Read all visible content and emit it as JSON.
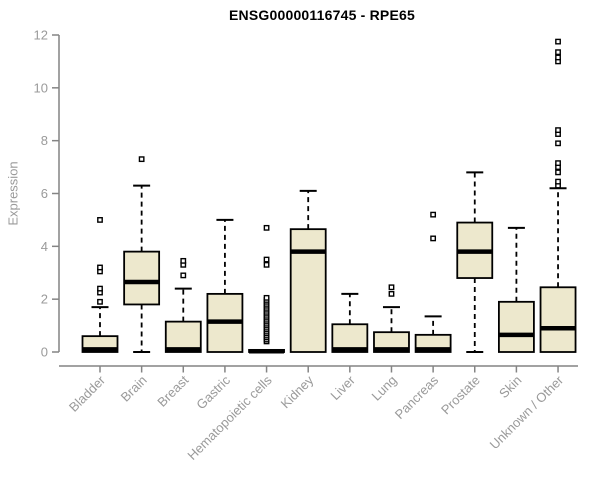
{
  "page": {
    "background": "#ffffff"
  },
  "chart_data": {
    "type": "boxplot",
    "title": "ENSG00000116745 - RPE65",
    "ylabel": "Expression",
    "xlabel": "",
    "ylim": [
      0,
      12
    ],
    "yticks": [
      0,
      2,
      4,
      6,
      8,
      10,
      12
    ],
    "grid": false,
    "legend": null,
    "categories": [
      "Bladder",
      "Brain",
      "Breast",
      "Gastric",
      "Hematopoietic cells",
      "Kidney",
      "Liver",
      "Lung",
      "Pancreas",
      "Prostate",
      "Skin",
      "Unknown / Other"
    ],
    "boxes": [
      {
        "category": "Bladder",
        "min": 0,
        "q1": 0,
        "median": 0.1,
        "q3": 0.6,
        "max": 1.7,
        "outliers": [
          1.9,
          2.25,
          2.4,
          3.05,
          3.2,
          5.0
        ]
      },
      {
        "category": "Brain",
        "min": 0,
        "q1": 1.8,
        "median": 2.65,
        "q3": 3.8,
        "max": 6.3,
        "outliers": [
          7.3
        ]
      },
      {
        "category": "Breast",
        "min": 0,
        "q1": 0,
        "median": 0.1,
        "q3": 1.15,
        "max": 2.4,
        "outliers": [
          2.9,
          3.3,
          3.45
        ]
      },
      {
        "category": "Gastric",
        "min": 0,
        "q1": 0,
        "median": 1.15,
        "q3": 2.2,
        "max": 5.0,
        "outliers": []
      },
      {
        "category": "Hematopoietic cells",
        "min": 0,
        "q1": 0,
        "median": 0.03,
        "q3": 0.08,
        "max": 0.08,
        "outliers": [
          0.4,
          0.47,
          0.55,
          0.62,
          0.7,
          0.77,
          0.85,
          0.92,
          1.0,
          1.07,
          1.15,
          1.22,
          1.3,
          1.37,
          1.45,
          1.52,
          1.6,
          1.67,
          1.75,
          1.82,
          1.9,
          1.97,
          2.05,
          3.3,
          3.5,
          4.7
        ]
      },
      {
        "category": "Kidney",
        "min": 0,
        "q1": 0,
        "median": 3.8,
        "q3": 4.65,
        "max": 6.1,
        "outliers": []
      },
      {
        "category": "Liver",
        "min": 0,
        "q1": 0,
        "median": 0.1,
        "q3": 1.05,
        "max": 2.2,
        "outliers": []
      },
      {
        "category": "Lung",
        "min": 0,
        "q1": 0,
        "median": 0.1,
        "q3": 0.75,
        "max": 1.7,
        "outliers": [
          2.2,
          2.45
        ]
      },
      {
        "category": "Pancreas",
        "min": 0,
        "q1": 0,
        "median": 0.1,
        "q3": 0.65,
        "max": 1.35,
        "outliers": [
          4.3,
          5.2
        ]
      },
      {
        "category": "Prostate",
        "min": 0,
        "q1": 2.8,
        "median": 3.8,
        "q3": 4.9,
        "max": 6.8,
        "outliers": []
      },
      {
        "category": "Skin",
        "min": 0,
        "q1": 0,
        "median": 0.65,
        "q3": 1.9,
        "max": 4.7,
        "outliers": []
      },
      {
        "category": "Unknown / Other",
        "min": 0,
        "q1": 0,
        "median": 0.9,
        "q3": 2.45,
        "max": 6.2,
        "outliers": [
          6.3,
          6.45,
          6.8,
          7.0,
          7.15,
          7.9,
          8.25,
          8.4,
          11.0,
          11.15,
          11.35,
          11.75
        ]
      }
    ],
    "colors": {
      "box_fill": "#ede8cd",
      "box_stroke": "#000000",
      "median": "#000000",
      "whisker": "#000000",
      "outlier_stroke": "#000000",
      "outlier_fill": "#ffffff",
      "axis": "#848484",
      "tick_label": "#9a9a9a",
      "title": "#000000"
    }
  }
}
